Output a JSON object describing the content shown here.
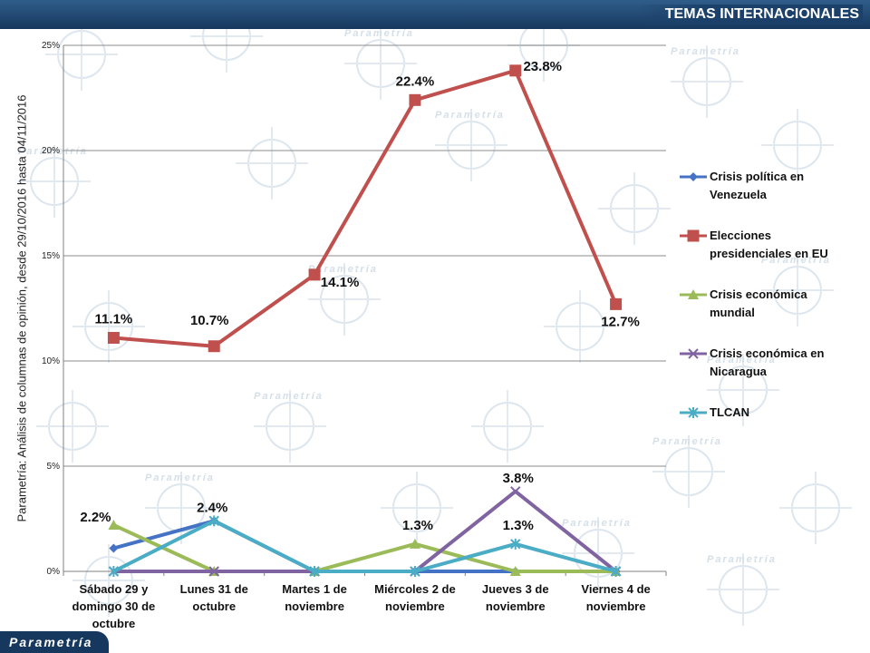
{
  "header": {
    "title": "TEMAS INTERNACIONALES"
  },
  "footer": {
    "logo": "Parametría"
  },
  "side_label": "Parametría: Análisis de columnas de opinión, desde 29/10/2016 hasta  04/11/2016",
  "watermark": "Parametría",
  "colors": {
    "header_bg": "#17385e",
    "venezuela": "#4472c4",
    "eu": "#c0504d",
    "mundial": "#9bbb59",
    "nicaragua": "#8064a2",
    "tlcan": "#4bacc6"
  },
  "chart_data": {
    "type": "line",
    "categories": [
      [
        "Sábado 29 y",
        "domingo 30 de",
        "octubre"
      ],
      [
        "Lunes 31 de",
        "octubre"
      ],
      [
        "Martes 1 de",
        "noviembre"
      ],
      [
        "Miércoles 2 de",
        "noviembre"
      ],
      [
        "Jueves 3 de",
        "noviembre"
      ],
      [
        "Viernes 4 de",
        "noviembre"
      ]
    ],
    "y_ticks": [
      "0%",
      "5%",
      "10%",
      "15%",
      "20%",
      "25%"
    ],
    "ylim": [
      0,
      25
    ],
    "grid": true,
    "legend_position": "right",
    "series": [
      {
        "name": [
          "Crisis política en",
          "Venezuela"
        ],
        "color": "#4472c4",
        "marker": "diamond",
        "values": [
          1.1,
          2.4,
          0,
          0,
          0,
          0
        ],
        "labels": [
          null,
          null,
          null,
          null,
          null,
          null
        ]
      },
      {
        "name": [
          "Elecciones",
          "presidenciales en EU"
        ],
        "color": "#c0504d",
        "marker": "square",
        "values": [
          11.1,
          10.7,
          14.1,
          22.4,
          23.8,
          12.7
        ],
        "labels": [
          "11.1%",
          "10.7%",
          "14.1%",
          "22.4%",
          "23.8%",
          "12.7%"
        ]
      },
      {
        "name": [
          "Crisis económica",
          "mundial"
        ],
        "color": "#9bbb59",
        "marker": "triangle",
        "values": [
          2.2,
          0,
          0,
          1.3,
          0,
          0
        ],
        "labels": [
          "2.2%",
          null,
          null,
          "1.3%",
          null,
          null
        ]
      },
      {
        "name": [
          "Crisis económica en",
          "Nicaragua"
        ],
        "color": "#8064a2",
        "marker": "x",
        "values": [
          0,
          0,
          0,
          0,
          3.8,
          0
        ],
        "labels": [
          null,
          null,
          null,
          null,
          "3.8%",
          null
        ]
      },
      {
        "name": [
          "TLCAN"
        ],
        "color": "#4bacc6",
        "marker": "star",
        "values": [
          0,
          2.4,
          0,
          0,
          1.3,
          0
        ],
        "labels": [
          null,
          "2.4%",
          null,
          null,
          "1.3%",
          null
        ]
      }
    ]
  }
}
